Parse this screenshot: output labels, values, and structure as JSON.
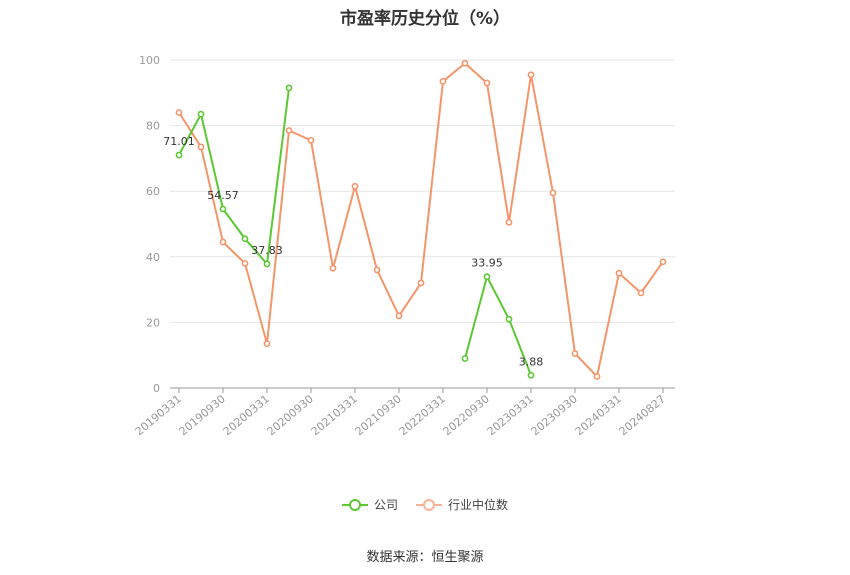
{
  "chart_data": {
    "type": "line",
    "title": "市盈率历史分位（%）",
    "ylim": [
      0,
      100
    ],
    "yticks": [
      0,
      20,
      40,
      60,
      80,
      100
    ],
    "xticks": [
      "20190331",
      "20190930",
      "20200331",
      "20200930",
      "20210331",
      "20210930",
      "20220331",
      "20220930",
      "20230331",
      "20230930",
      "20240331",
      "20240827"
    ],
    "grid": true,
    "legend_position": "bottom-center",
    "series": [
      {
        "name": "公司",
        "color": "#5cc833",
        "points": [
          {
            "i": 0,
            "y": 71.01,
            "label": "71.01"
          },
          {
            "i": 1,
            "y": 83.5
          },
          {
            "i": 2,
            "y": 54.57,
            "label": "54.57"
          },
          {
            "i": 3,
            "y": 45.5
          },
          {
            "i": 4,
            "y": 37.83,
            "label": "37.83"
          },
          {
            "i": 5,
            "y": 91.5
          },
          {
            "i": 6,
            "y": null
          },
          {
            "i": 7,
            "y": null
          },
          {
            "i": 8,
            "y": null
          },
          {
            "i": 9,
            "y": null
          },
          {
            "i": 10,
            "y": null
          },
          {
            "i": 11,
            "y": null
          },
          {
            "i": 12,
            "y": null
          },
          {
            "i": 13,
            "y": 9.0
          },
          {
            "i": 14,
            "y": 33.95,
            "label": "33.95"
          },
          {
            "i": 15,
            "y": 21.0
          },
          {
            "i": 16,
            "y": 3.88,
            "label": "3.88"
          }
        ]
      },
      {
        "name": "行业中位数",
        "color": "#f4956a",
        "points": [
          {
            "i": 0,
            "y": 84.0
          },
          {
            "i": 1,
            "y": 73.5
          },
          {
            "i": 2,
            "y": 44.5
          },
          {
            "i": 3,
            "y": 38.0
          },
          {
            "i": 4,
            "y": 13.5
          },
          {
            "i": 5,
            "y": 78.5
          },
          {
            "i": 6,
            "y": 75.5
          },
          {
            "i": 7,
            "y": 36.5
          },
          {
            "i": 8,
            "y": 61.5
          },
          {
            "i": 9,
            "y": 36.0
          },
          {
            "i": 10,
            "y": 22.0
          },
          {
            "i": 11,
            "y": 32.0
          },
          {
            "i": 12,
            "y": 93.5
          },
          {
            "i": 13,
            "y": 99.0
          },
          {
            "i": 14,
            "y": 93.0
          },
          {
            "i": 15,
            "y": 50.5
          },
          {
            "i": 16,
            "y": 95.5
          },
          {
            "i": 17,
            "y": 59.5
          },
          {
            "i": 18,
            "y": 10.5
          },
          {
            "i": 19,
            "y": 3.5
          },
          {
            "i": 20,
            "y": 35.0
          },
          {
            "i": 21,
            "y": 29.0
          },
          {
            "i": 22,
            "y": 38.5
          }
        ]
      }
    ],
    "source": "数据来源：恒生聚源"
  }
}
